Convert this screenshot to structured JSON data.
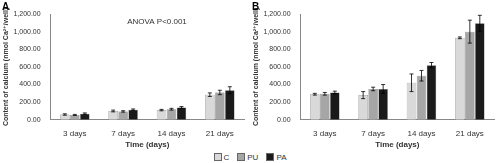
{
  "chart_data": [
    {
      "type": "bar",
      "title": "A",
      "annotation": "ANOVA P<0.001",
      "x_label": "Time (days)",
      "y_label": "Content of calcium (nmol Ca²⁺/well)",
      "categories": [
        "3 days",
        "7 days",
        "14 days",
        "21 days"
      ],
      "series": [
        {
          "name": "C",
          "color": "#d9d9d9",
          "values": [
            60,
            100,
            110,
            285
          ],
          "errors": [
            8,
            10,
            8,
            20
          ]
        },
        {
          "name": "PU",
          "color": "#a6a6a6",
          "values": [
            55,
            95,
            120,
            310
          ],
          "errors": [
            6,
            8,
            10,
            25
          ]
        },
        {
          "name": "PA",
          "color": "#1a1a1a",
          "values": [
            70,
            115,
            140,
            335
          ],
          "errors": [
            8,
            8,
            10,
            40
          ]
        }
      ],
      "ylim": [
        0,
        1200
      ],
      "yticks": [
        {
          "value": 0,
          "label": "0.00"
        },
        {
          "value": 200,
          "label": "200.00"
        },
        {
          "value": 400,
          "label": "400.00"
        },
        {
          "value": 600,
          "label": "600.00"
        },
        {
          "value": 800,
          "label": "800.00"
        },
        {
          "value": 1000,
          "label": "1,000.00"
        },
        {
          "value": 1200,
          "label": "1,200.00"
        }
      ],
      "grid": false,
      "legend": "bottom"
    },
    {
      "type": "bar",
      "title": "B",
      "x_label": "Time (days)",
      "y_label": "Content of calcium (nmol Ca²⁺/well)",
      "categories": [
        "3 days",
        "7 days",
        "14 days",
        "21 days"
      ],
      "series": [
        {
          "name": "C",
          "color": "#d9d9d9",
          "values": [
            290,
            280,
            420,
            930
          ],
          "errors": [
            10,
            40,
            100,
            10
          ]
        },
        {
          "name": "PU",
          "color": "#a6a6a6",
          "values": [
            295,
            350,
            500,
            1000
          ],
          "errors": [
            15,
            20,
            60,
            130
          ]
        },
        {
          "name": "PA",
          "color": "#1a1a1a",
          "values": [
            310,
            350,
            620,
            1095
          ],
          "errors": [
            15,
            50,
            30,
            90
          ]
        }
      ],
      "ylim": [
        0,
        1200
      ],
      "yticks": [
        {
          "value": 0,
          "label": "0.00"
        },
        {
          "value": 200,
          "label": "200.00"
        },
        {
          "value": 400,
          "label": "400.00"
        },
        {
          "value": 600,
          "label": "600.00"
        },
        {
          "value": 800,
          "label": "800.00"
        },
        {
          "value": 1000,
          "label": "1,000.00"
        },
        {
          "value": 1200,
          "label": "1,200.00"
        }
      ],
      "grid": false
    }
  ]
}
